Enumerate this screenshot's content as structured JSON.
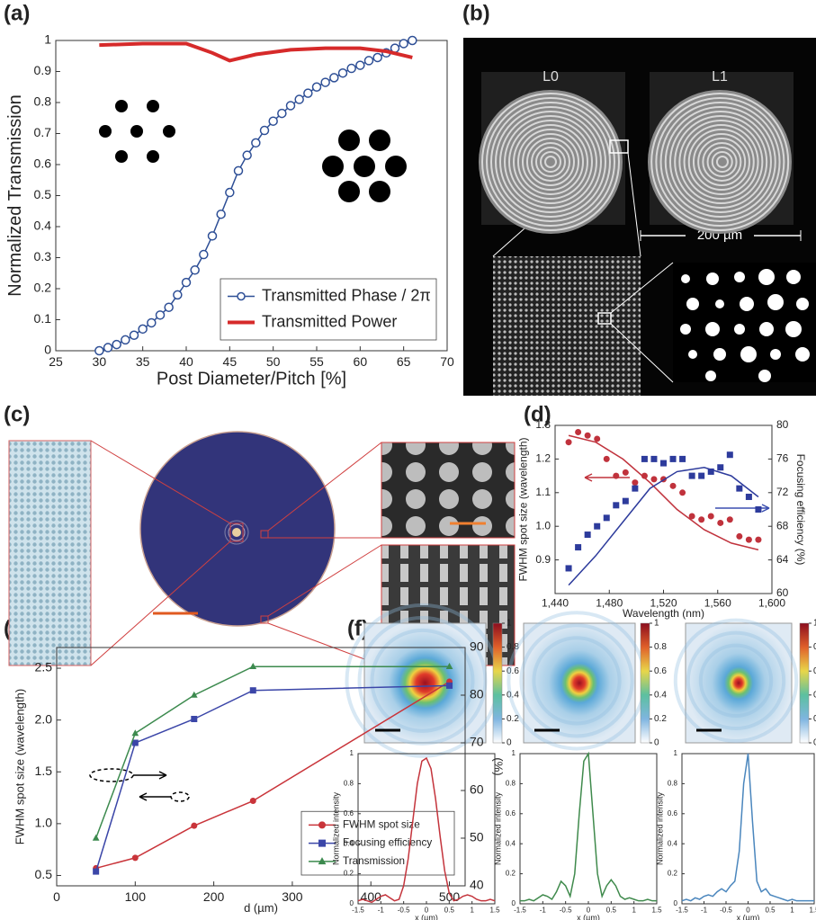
{
  "panel_labels": [
    "(a)",
    "(b)",
    "(c)",
    "(d)",
    "(e)",
    "(f)"
  ],
  "panel_b": {
    "labels": [
      "L0",
      "L1"
    ],
    "scale_bar": "200 µm"
  },
  "panel_f_colorbar_ticks": [
    0,
    0.2,
    0.4,
    0.6,
    0.8,
    1
  ],
  "chart_data": [
    {
      "type": "line",
      "xlabel": "Post Diameter/Pitch [%]",
      "ylabel": "Normalized Transmission",
      "xlim": [
        25,
        70
      ],
      "xticks": [
        25,
        30,
        35,
        40,
        45,
        50,
        55,
        60,
        65,
        70
      ],
      "ylim": [
        0,
        1
      ],
      "yticks": [
        0,
        0.1,
        0.2,
        0.3,
        0.4,
        0.5,
        0.6,
        0.7,
        0.8,
        0.9,
        1
      ],
      "legend": "lower right",
      "series": [
        {
          "name": "Transmitted Phase / 2π",
          "color": "#2e4f96",
          "marker": "open-circle",
          "line": true,
          "x": [
            30,
            31,
            32,
            33,
            34,
            35,
            36,
            37,
            38,
            39,
            40,
            41,
            42,
            43,
            44,
            45,
            46,
            47,
            48,
            49,
            50,
            51,
            52,
            53,
            54,
            55,
            56,
            57,
            58,
            59,
            60,
            61,
            62,
            63,
            64,
            65,
            66
          ],
          "values": [
            0,
            0.01,
            0.02,
            0.035,
            0.05,
            0.07,
            0.09,
            0.115,
            0.14,
            0.18,
            0.22,
            0.26,
            0.31,
            0.37,
            0.44,
            0.51,
            0.58,
            0.63,
            0.67,
            0.71,
            0.74,
            0.765,
            0.79,
            0.81,
            0.83,
            0.85,
            0.865,
            0.88,
            0.895,
            0.91,
            0.92,
            0.935,
            0.945,
            0.96,
            0.975,
            0.99,
            1.0
          ]
        },
        {
          "name": "Transmitted Power",
          "color": "#d62a2a",
          "marker": "none",
          "line": true,
          "width": 4,
          "x": [
            30,
            35,
            40,
            43,
            45,
            48,
            52,
            56,
            60,
            63,
            66
          ],
          "values": [
            0.985,
            0.99,
            0.99,
            0.96,
            0.935,
            0.955,
            0.97,
            0.975,
            0.975,
            0.965,
            0.945
          ]
        }
      ]
    },
    {
      "type": "scatter",
      "xlabel": "Wavelength (nm)",
      "ylabel": "FWHM spot size (wavelength)",
      "y2label": "Focusing efficiency (%)",
      "xlim": [
        1440,
        1600
      ],
      "xticks": [
        {
          "value": 1440,
          "label": "1,440"
        },
        {
          "value": 1480,
          "label": "1,480"
        },
        {
          "value": 1520,
          "label": "1,520"
        },
        {
          "value": 1560,
          "label": "1,560"
        },
        {
          "value": 1600,
          "label": "1,600"
        }
      ],
      "ylim": [
        0.8,
        1.3
      ],
      "yticks": [
        0.9,
        {
          "value": 1.0,
          "label": "1.0"
        },
        1.1,
        1.2,
        1.3
      ],
      "y2lim": [
        60,
        80
      ],
      "y2ticks": [
        60,
        64,
        68,
        72,
        76,
        80
      ],
      "series": [
        {
          "color": "#c0323c",
          "marker": "circle",
          "line": false,
          "x": [
            1450,
            1457,
            1464,
            1471,
            1478,
            1485,
            1492,
            1499,
            1506,
            1513,
            1520,
            1527,
            1534,
            1541,
            1548,
            1555,
            1562,
            1569,
            1576,
            1583,
            1590
          ],
          "values": [
            1.25,
            1.28,
            1.27,
            1.26,
            1.2,
            1.15,
            1.16,
            1.13,
            1.15,
            1.14,
            1.14,
            1.12,
            1.1,
            1.03,
            1.02,
            1.03,
            1.01,
            1.02,
            0.97,
            0.96,
            0.96
          ]
        },
        {
          "color": "#2d3b9c",
          "marker": "square",
          "line": false,
          "axis": "y2",
          "x": [
            1450,
            1457,
            1464,
            1471,
            1478,
            1485,
            1492,
            1499,
            1506,
            1513,
            1520,
            1527,
            1534,
            1541,
            1548,
            1555,
            1562,
            1569,
            1576,
            1583,
            1590
          ],
          "values": [
            63,
            65.5,
            67,
            68,
            69,
            70.5,
            71,
            72.5,
            76,
            76,
            75.5,
            76,
            76,
            74,
            74,
            74.5,
            75,
            76.5,
            72.5,
            71.5,
            70
          ]
        },
        {
          "color": "#c0323c",
          "marker": "none",
          "line": true,
          "x": [
            1450,
            1470,
            1490,
            1510,
            1530,
            1550,
            1570,
            1590
          ],
          "values": [
            1.27,
            1.25,
            1.2,
            1.13,
            1.05,
            0.99,
            0.95,
            0.93
          ]
        },
        {
          "color": "#2d3b9c",
          "marker": "none",
          "line": true,
          "axis": "y2",
          "x": [
            1450,
            1470,
            1490,
            1510,
            1530,
            1550,
            1570,
            1590
          ],
          "values": [
            61,
            64.5,
            68.5,
            72.5,
            74.5,
            75,
            74,
            71.5
          ]
        }
      ]
    },
    {
      "type": "line",
      "xlabel": "d (µm)",
      "ylabel": "FWHM spot size (wavelength)",
      "y2label": "(%)",
      "xlim": [
        0,
        520
      ],
      "xticks": [
        0,
        100,
        200,
        300,
        400,
        500
      ],
      "ylim": [
        0.4,
        2.7
      ],
      "yticks": [
        0.5,
        {
          "value": 1,
          "label": "1.0"
        },
        1.5,
        {
          "value": 2,
          "label": "2.0"
        },
        2.5
      ],
      "y2lim": [
        40,
        90
      ],
      "y2ticks": [
        40,
        50,
        60,
        70,
        80,
        90
      ],
      "legend": "lower right",
      "x": [
        50,
        100,
        175,
        250,
        500
      ],
      "series": [
        {
          "name": "FWHM spot size",
          "color": "#c9343a",
          "marker": "circle",
          "line": true,
          "values": [
            0.57,
            0.67,
            0.98,
            1.22,
            2.37
          ]
        },
        {
          "name": "Focusing efficiency",
          "color": "#3b46a8",
          "marker": "square",
          "line": true,
          "axis": "y2",
          "values": [
            43,
            70,
            75,
            81,
            82
          ]
        },
        {
          "name": "Transmission",
          "color": "#3c8a4e",
          "marker": "triangle",
          "line": true,
          "axis": "y2",
          "values": [
            50,
            72,
            80,
            86,
            86
          ]
        }
      ]
    },
    {
      "type": "line",
      "xlabel": "x (µm)",
      "ylabel": "Normalized intensity",
      "xlim": [
        -1.5,
        1.5
      ],
      "xticks": [
        -1.5,
        -1,
        -0.5,
        0,
        0.5,
        1,
        1.5
      ],
      "ylim": [
        0,
        1
      ],
      "yticks": [
        0,
        0.2,
        0.4,
        0.6,
        0.8,
        1
      ],
      "x": [
        -1.5,
        -1.4,
        -1.3,
        -1.2,
        -1.1,
        -1,
        -0.9,
        -0.8,
        -0.7,
        -0.6,
        -0.5,
        -0.4,
        -0.3,
        -0.2,
        -0.1,
        0,
        0.1,
        0.2,
        0.3,
        0.4,
        0.5,
        0.6,
        0.7,
        0.8,
        0.9,
        1,
        1.1,
        1.2,
        1.3,
        1.4,
        1.5
      ],
      "series": [
        {
          "color": "#c4343c",
          "marker": "none",
          "line": true,
          "values": [
            0.02,
            0.03,
            0.02,
            0.01,
            0.03,
            0.05,
            0.06,
            0.04,
            0.02,
            0.03,
            0.12,
            0.3,
            0.55,
            0.8,
            0.95,
            0.97,
            0.9,
            0.7,
            0.45,
            0.22,
            0.07,
            0.02,
            0.03,
            0.05,
            0.06,
            0.05,
            0.03,
            0.02,
            0.02,
            0.03,
            0.02
          ]
        }
      ]
    },
    {
      "type": "line",
      "xlabel": "x (µm)",
      "ylabel": "Normalized intensity",
      "xlim": [
        -1.5,
        1.5
      ],
      "xticks": [
        -1.5,
        -1,
        -0.5,
        0,
        0.5,
        1,
        1.5
      ],
      "ylim": [
        0,
        1
      ],
      "yticks": [
        0,
        0.2,
        0.4,
        0.6,
        0.8,
        1
      ],
      "x": [
        -1.5,
        -1.4,
        -1.3,
        -1.2,
        -1.1,
        -1,
        -0.9,
        -0.8,
        -0.7,
        -0.6,
        -0.5,
        -0.4,
        -0.3,
        -0.2,
        -0.1,
        0,
        0.1,
        0.2,
        0.3,
        0.4,
        0.5,
        0.6,
        0.7,
        0.8,
        0.9,
        1,
        1.1,
        1.2,
        1.3,
        1.4,
        1.5
      ],
      "series": [
        {
          "color": "#3f8a4c",
          "marker": "none",
          "line": true,
          "values": [
            0.02,
            0.02,
            0.03,
            0.02,
            0.04,
            0.06,
            0.05,
            0.03,
            0.08,
            0.15,
            0.12,
            0.05,
            0.2,
            0.6,
            0.95,
            1.0,
            0.6,
            0.2,
            0.05,
            0.12,
            0.16,
            0.12,
            0.05,
            0.03,
            0.04,
            0.03,
            0.02,
            0.02,
            0.03,
            0.02,
            0.02
          ]
        }
      ]
    },
    {
      "type": "line",
      "xlabel": "x (µm)",
      "ylabel": "Normalized intensity",
      "xlim": [
        -1.5,
        1.5
      ],
      "xticks": [
        -1.5,
        -1,
        -0.5,
        0,
        0.5,
        1,
        1.5
      ],
      "ylim": [
        0,
        1
      ],
      "yticks": [
        0,
        0.2,
        0.4,
        0.6,
        0.8,
        1
      ],
      "x": [
        -1.5,
        -1.4,
        -1.3,
        -1.2,
        -1.1,
        -1,
        -0.9,
        -0.8,
        -0.7,
        -0.6,
        -0.5,
        -0.4,
        -0.3,
        -0.2,
        -0.1,
        0,
        0.1,
        0.2,
        0.3,
        0.4,
        0.5,
        0.6,
        0.7,
        0.8,
        0.9,
        1,
        1.1,
        1.2,
        1.3,
        1.4,
        1.5
      ],
      "series": [
        {
          "color": "#4a86bd",
          "marker": "none",
          "line": true,
          "values": [
            0.02,
            0.03,
            0.02,
            0.04,
            0.03,
            0.05,
            0.06,
            0.05,
            0.08,
            0.1,
            0.08,
            0.12,
            0.15,
            0.35,
            0.8,
            1.0,
            0.55,
            0.15,
            0.08,
            0.1,
            0.06,
            0.05,
            0.04,
            0.03,
            0.02,
            0.03,
            0.02,
            0.02,
            0.02,
            0.02,
            0.02
          ]
        }
      ]
    }
  ]
}
